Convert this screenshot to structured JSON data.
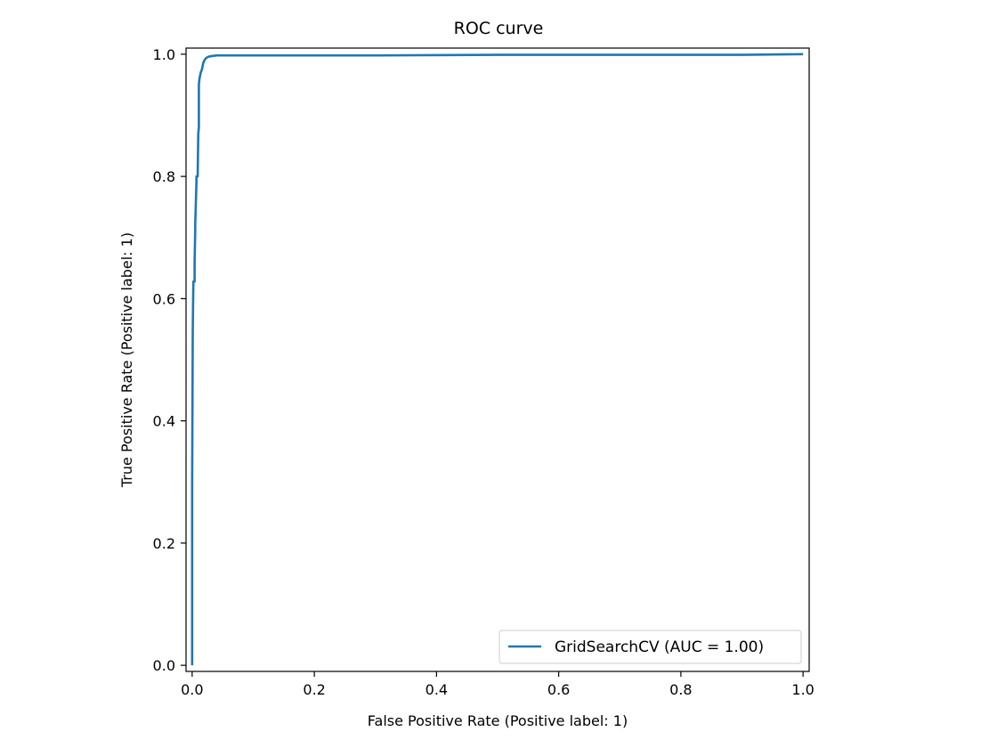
{
  "chart_data": {
    "type": "line",
    "title": "ROC curve",
    "xlabel": "False Positive Rate (Positive label: 1)",
    "ylabel": "True Positive Rate (Positive label: 1)",
    "xlim": [
      -0.01,
      1.01
    ],
    "ylim": [
      -0.01,
      1.01
    ],
    "xticks": [
      0.0,
      0.2,
      0.4,
      0.6,
      0.8,
      1.0
    ],
    "yticks": [
      0.0,
      0.2,
      0.4,
      0.6,
      0.8,
      1.0
    ],
    "xtick_labels": [
      "0.0",
      "0.2",
      "0.4",
      "0.6",
      "0.8",
      "1.0"
    ],
    "ytick_labels": [
      "0.0",
      "0.2",
      "0.4",
      "0.6",
      "0.8",
      "1.0"
    ],
    "grid": false,
    "legend_position": "lower-right",
    "series": [
      {
        "name": "GridSearchCV (AUC = 1.00)",
        "color": "#1f77b4",
        "x": [
          0.0,
          0.0,
          0.001,
          0.002,
          0.004,
          0.004,
          0.005,
          0.005,
          0.007,
          0.007,
          0.009,
          0.01,
          0.011,
          0.011,
          0.012,
          0.014,
          0.016,
          0.018,
          0.02,
          0.023,
          0.027,
          0.032,
          0.04,
          0.05,
          0.08,
          0.15,
          0.3,
          0.5,
          0.7,
          0.9,
          1.0
        ],
        "y": [
          0.0,
          0.3,
          0.55,
          0.628,
          0.628,
          0.66,
          0.71,
          0.72,
          0.79,
          0.8,
          0.8,
          0.87,
          0.88,
          0.95,
          0.96,
          0.97,
          0.975,
          0.985,
          0.99,
          0.994,
          0.996,
          0.997,
          0.998,
          0.998,
          0.998,
          0.998,
          0.998,
          0.999,
          0.999,
          0.999,
          1.0
        ]
      }
    ]
  }
}
